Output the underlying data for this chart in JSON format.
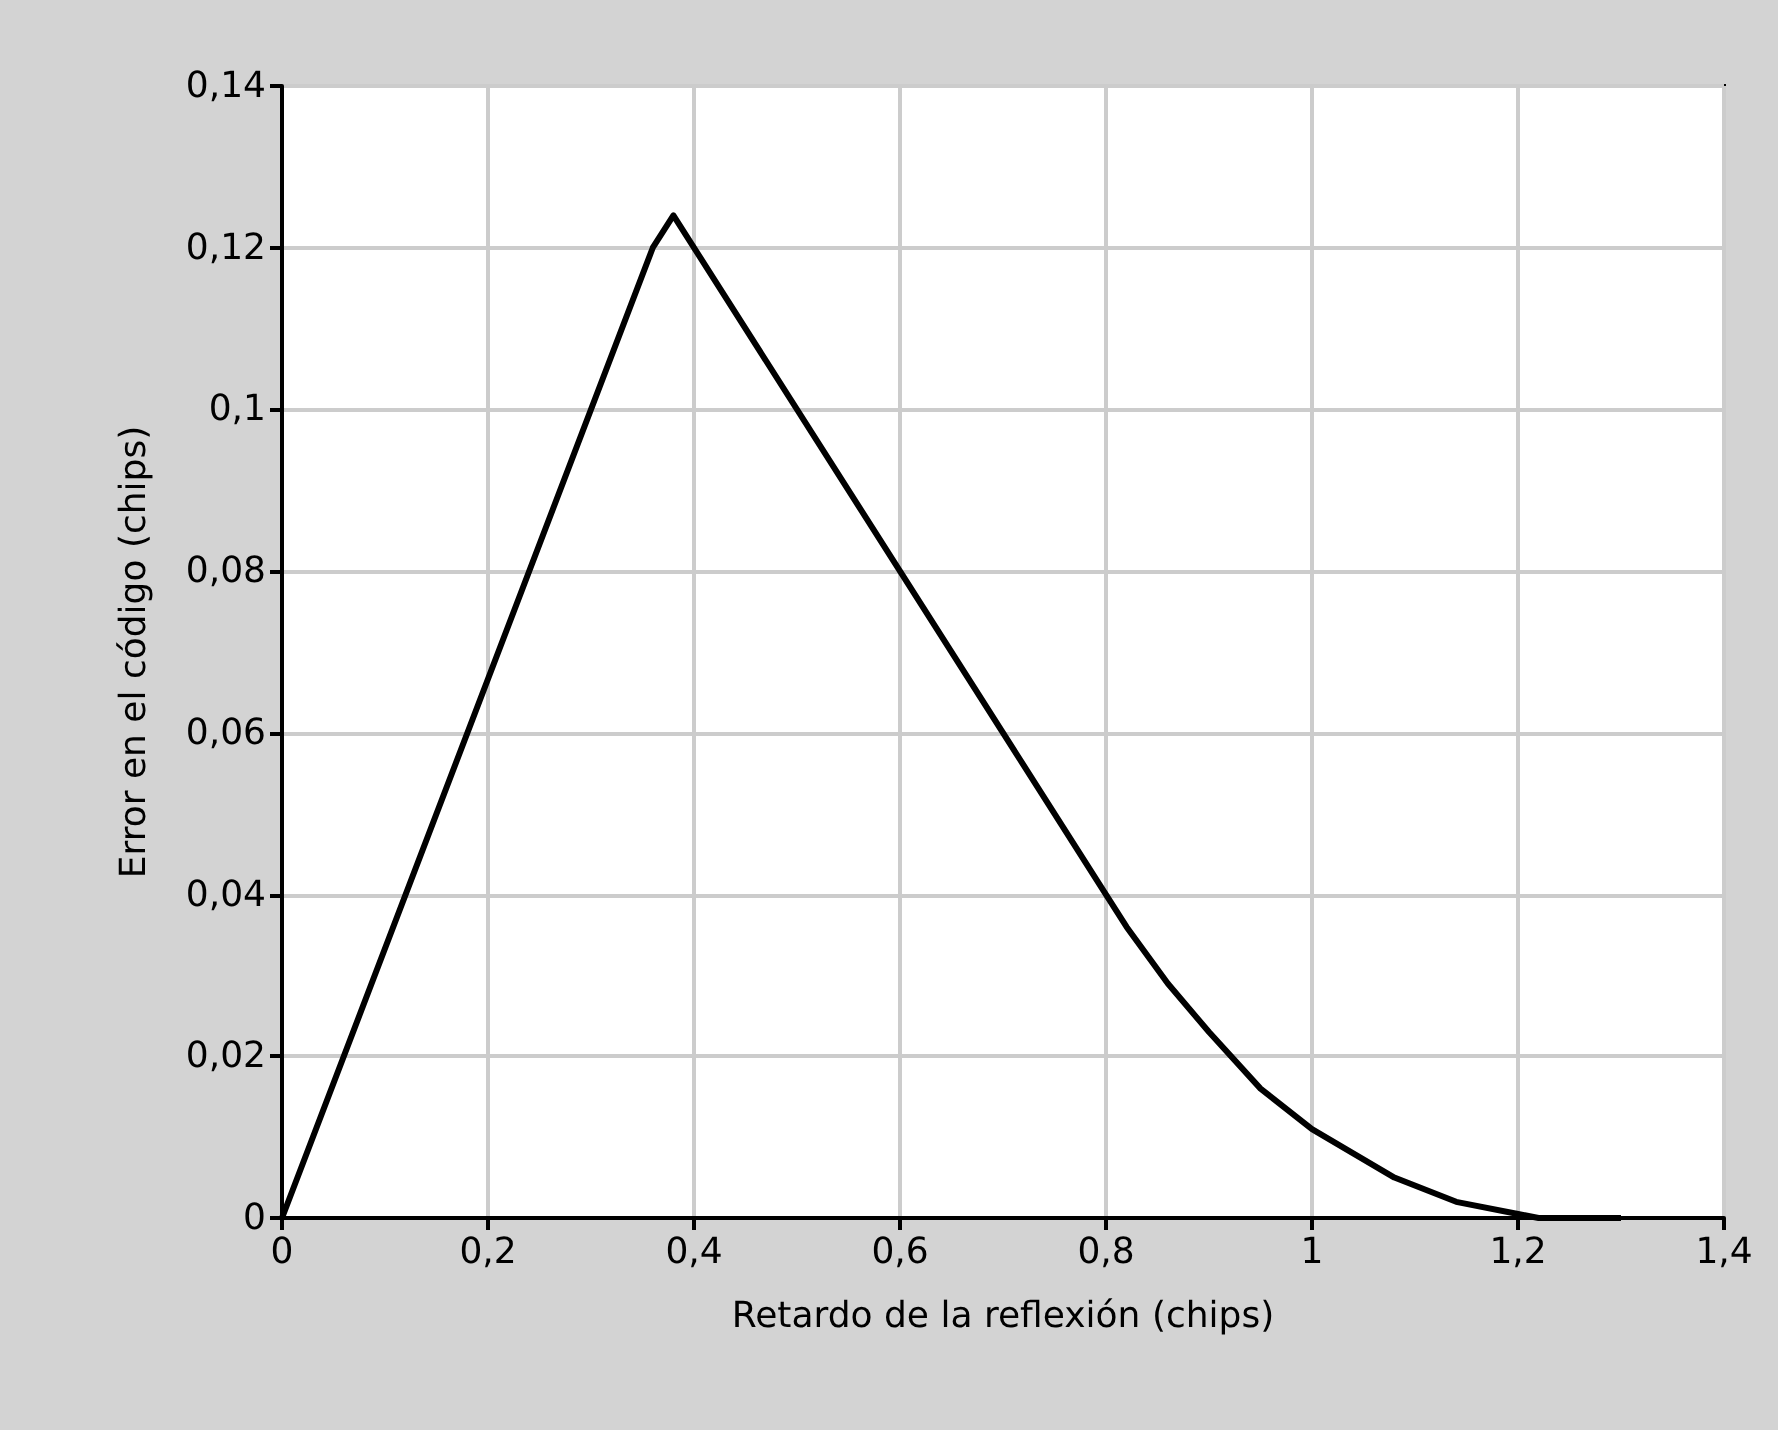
{
  "chart_data": {
    "type": "line",
    "xlabel": "Retardo de la reflexión (chips)",
    "ylabel": "Error en el código (chips)",
    "x": [
      0,
      0.36,
      0.38,
      0.8,
      0.82,
      0.86,
      0.9,
      0.95,
      1.0,
      1.04,
      1.08,
      1.14,
      1.2,
      1.22,
      1.3
    ],
    "series": [
      {
        "color": "#000000",
        "values": [
          0,
          0.12,
          0.124,
          0.04,
          0.036,
          0.029,
          0.023,
          0.016,
          0.011,
          0.008,
          0.005,
          0.002,
          0.0005,
          0,
          0
        ]
      }
    ],
    "xlim": [
      0,
      1.4
    ],
    "xticks": [
      0,
      {
        "value": 0.2,
        "label": "0,2"
      },
      {
        "value": 0.4,
        "label": "0,4"
      },
      {
        "value": 0.6,
        "label": "0,6"
      },
      {
        "value": 0.8,
        "label": "0,8"
      },
      1,
      {
        "value": 1.2,
        "label": "1,2"
      },
      {
        "value": 1.4,
        "label": "1,4"
      }
    ],
    "ylim": [
      0,
      0.14
    ],
    "yticks": [
      0,
      {
        "value": 0.02,
        "label": "0,02"
      },
      {
        "value": 0.04,
        "label": "0,04"
      },
      {
        "value": 0.06,
        "label": "0,06"
      },
      {
        "value": 0.08,
        "label": "0,08"
      },
      {
        "value": 0.1,
        "label": "0,1"
      },
      {
        "value": 0.12,
        "label": "0,12"
      },
      {
        "value": 0.14,
        "label": "0,14"
      }
    ],
    "grid": true,
    "marker": "none",
    "line_style": "solid"
  }
}
